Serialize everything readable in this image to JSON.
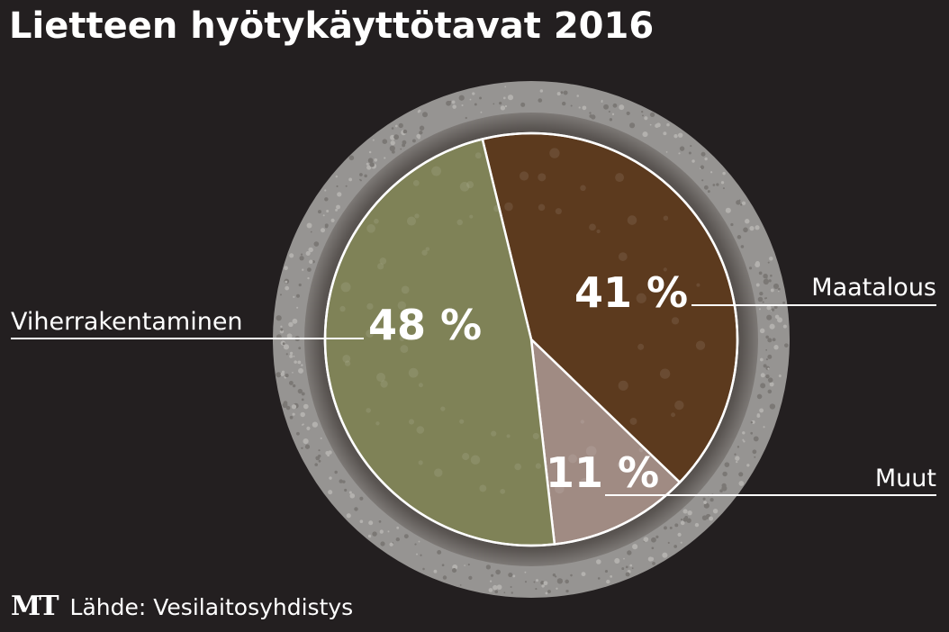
{
  "header": {
    "title": "Lietteen hyötykäyttötavat 2016"
  },
  "footer": {
    "logo": "MT",
    "source": "Lähde: Vesilaitosyhdistys"
  },
  "chart_data": {
    "type": "pie",
    "title": "Lietteen hyötykäyttötavat 2016",
    "unit": "%",
    "slices": [
      {
        "name": "Maatalous",
        "value": 41,
        "label": "41 %",
        "color": "#5c3a1e"
      },
      {
        "name": "Muut",
        "value": 11,
        "label": "11 %",
        "color": "#a08b83"
      },
      {
        "name": "Viherrakentaminen",
        "value": 48,
        "label": "48 %",
        "color": "#7f8257"
      }
    ],
    "start_angle_deg": -13.7,
    "direction": "clockwise",
    "colors": {
      "background": "#231f20",
      "rim": "#969492",
      "rim_inner": "#4a4543",
      "slice_stroke": "#ffffff",
      "leader": "#ffffff"
    }
  }
}
